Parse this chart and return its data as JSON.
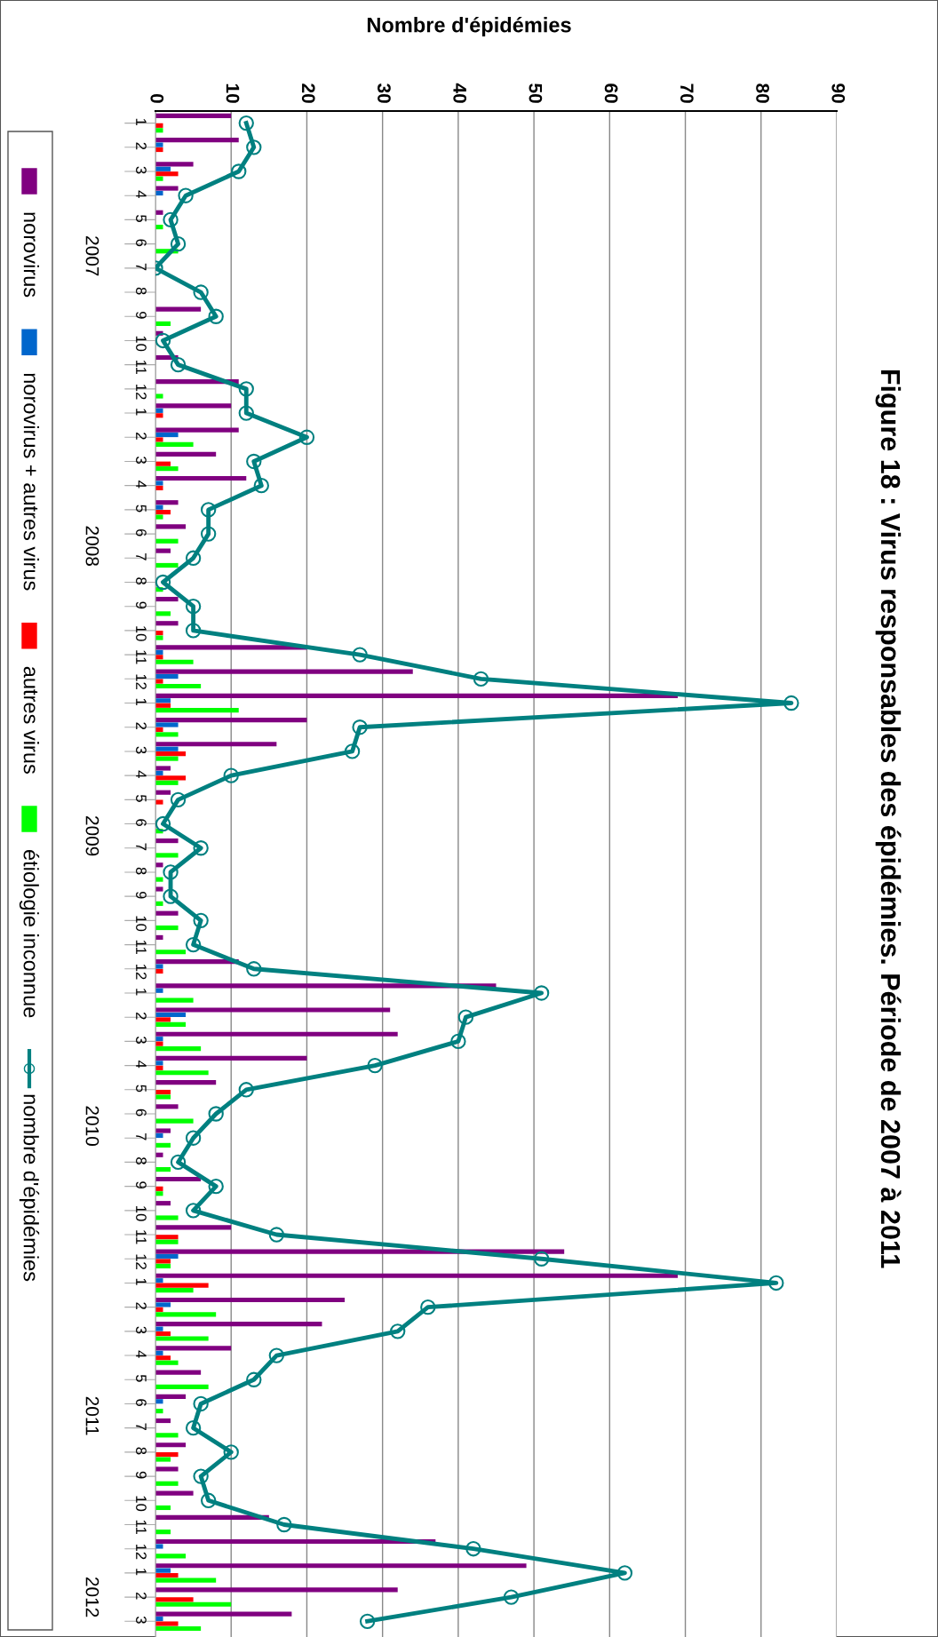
{
  "chart_data": {
    "type": "bar",
    "orientation": "horizontal",
    "title": "Figure 18 : Virus responsables des épidémies. Période de 2007 à 2011",
    "xlabel": "Nombre d'épidémies",
    "categories": [
      "1",
      "2",
      "3",
      "4",
      "5",
      "6",
      "7",
      "8",
      "9",
      "10",
      "11",
      "12",
      "1",
      "2",
      "3",
      "4",
      "5",
      "6",
      "7",
      "8",
      "9",
      "10",
      "11",
      "12",
      "1",
      "2",
      "3",
      "4",
      "5",
      "6",
      "7",
      "8",
      "9",
      "10",
      "11",
      "12",
      "1",
      "2",
      "3",
      "4",
      "5",
      "6",
      "7",
      "8",
      "9",
      "10",
      "11",
      "12",
      "1",
      "2",
      "3",
      "4",
      "5",
      "6",
      "7",
      "8",
      "9",
      "10",
      "11",
      "12",
      "1",
      "2",
      "3"
    ],
    "annotations": [
      "2007",
      "2008",
      "2009",
      "2010",
      "2011",
      "2012"
    ],
    "series": [
      {
        "name": "norovirus",
        "color": "#800080",
        "values": [
          10,
          11,
          5,
          3,
          1,
          0,
          0,
          0,
          6,
          1,
          3,
          11,
          10,
          11,
          8,
          12,
          3,
          4,
          2,
          0,
          3,
          3,
          20,
          34,
          69,
          20,
          16,
          2,
          2,
          0,
          3,
          1,
          1,
          3,
          1,
          11,
          45,
          31,
          32,
          20,
          8,
          3,
          2,
          1,
          6,
          2,
          10,
          54,
          69,
          25,
          22,
          10,
          6,
          4,
          2,
          4,
          3,
          5,
          15,
          37,
          49,
          32,
          18
        ]
      },
      {
        "name": "norovirus + autres virus",
        "color": "#0066cc",
        "values": [
          0,
          1,
          2,
          1,
          0,
          0,
          0,
          0,
          0,
          0,
          0,
          0,
          1,
          3,
          0,
          1,
          1,
          0,
          0,
          0,
          0,
          0,
          1,
          3,
          2,
          3,
          3,
          1,
          0,
          0,
          0,
          0,
          0,
          0,
          0,
          1,
          1,
          4,
          1,
          1,
          0,
          0,
          1,
          0,
          0,
          0,
          0,
          3,
          1,
          2,
          1,
          1,
          0,
          1,
          0,
          0,
          0,
          0,
          0,
          1,
          2,
          0,
          1
        ]
      },
      {
        "name": "autres virus",
        "color": "#ff0000",
        "values": [
          1,
          1,
          3,
          0,
          0,
          0,
          0,
          0,
          0,
          0,
          0,
          0,
          1,
          1,
          2,
          1,
          2,
          0,
          0,
          0,
          0,
          1,
          1,
          1,
          2,
          1,
          4,
          4,
          1,
          0,
          0,
          0,
          0,
          0,
          0,
          1,
          0,
          2,
          1,
          1,
          2,
          0,
          0,
          0,
          1,
          0,
          3,
          2,
          7,
          1,
          2,
          2,
          0,
          0,
          0,
          3,
          0,
          0,
          0,
          0,
          3,
          5,
          3
        ]
      },
      {
        "name": "étiologie inconnue",
        "color": "#00ff00",
        "values": [
          1,
          0,
          1,
          0,
          1,
          3,
          0,
          0,
          2,
          0,
          0,
          1,
          0,
          5,
          3,
          0,
          1,
          3,
          3,
          1,
          2,
          1,
          5,
          6,
          11,
          3,
          3,
          3,
          0,
          1,
          3,
          1,
          1,
          3,
          4,
          0,
          5,
          4,
          6,
          7,
          2,
          5,
          2,
          2,
          1,
          3,
          3,
          2,
          5,
          8,
          7,
          3,
          7,
          1,
          3,
          2,
          3,
          2,
          2,
          4,
          8,
          10,
          6
        ]
      },
      {
        "name": "nombre d'épidémies",
        "type": "line",
        "color": "#008080",
        "marker": "circle",
        "line_style": "solid",
        "values": [
          12,
          13,
          11,
          4,
          2,
          3,
          0,
          6,
          8,
          1,
          3,
          12,
          12,
          20,
          13,
          14,
          7,
          7,
          5,
          1,
          5,
          5,
          27,
          43,
          84,
          27,
          26,
          10,
          3,
          1,
          6,
          2,
          2,
          6,
          5,
          13,
          51,
          41,
          40,
          29,
          12,
          8,
          5,
          3,
          8,
          5,
          16,
          51,
          82,
          36,
          32,
          16,
          13,
          6,
          5,
          10,
          6,
          7,
          17,
          42,
          62,
          47,
          28
        ]
      }
    ],
    "xlim": [
      0,
      90
    ],
    "xticks": [
      0,
      10,
      20,
      30,
      40,
      50,
      60,
      70,
      80,
      90
    ],
    "grid": "x",
    "legend": "left"
  }
}
